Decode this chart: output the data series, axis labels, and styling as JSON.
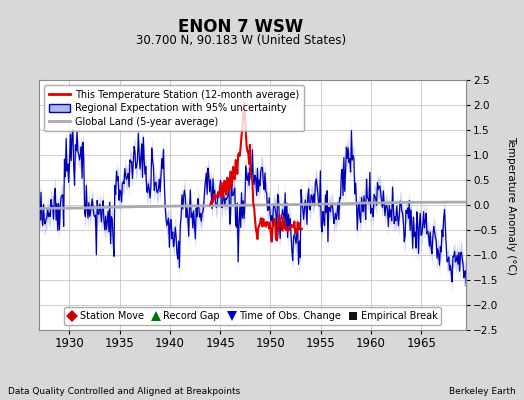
{
  "title": "ENON 7 WSW",
  "subtitle": "30.700 N, 90.183 W (United States)",
  "xlabel_bottom": "Data Quality Controlled and Aligned at Breakpoints",
  "xlabel_right": "Berkeley Earth",
  "ylabel_right": "Temperature Anomaly (°C)",
  "xlim": [
    1927.0,
    1969.5
  ],
  "ylim": [
    -2.5,
    2.5
  ],
  "yticks": [
    -2.5,
    -2.0,
    -1.5,
    -1.0,
    -0.5,
    0.0,
    0.5,
    1.0,
    1.5,
    2.0,
    2.5
  ],
  "xticks": [
    1930,
    1935,
    1940,
    1945,
    1950,
    1955,
    1960,
    1965
  ],
  "background_color": "#d8d8d8",
  "plot_bg_color": "#ffffff",
  "grid_color": "#bbbbbb",
  "blue_line_color": "#0000bb",
  "blue_fill_color": "#b0b8e8",
  "red_line_color": "#dd0000",
  "gray_line_color": "#aaaaaa",
  "legend_items": [
    {
      "label": "This Temperature Station (12-month average)"
    },
    {
      "label": "Regional Expectation with 95% uncertainty"
    },
    {
      "label": "Global Land (5-year average)"
    }
  ],
  "marker_legend": [
    {
      "label": "Station Move",
      "marker": "D",
      "color": "#cc0000"
    },
    {
      "label": "Record Gap",
      "marker": "^",
      "color": "#007700"
    },
    {
      "label": "Time of Obs. Change",
      "marker": "v",
      "color": "#0000cc"
    },
    {
      "label": "Empirical Break",
      "marker": "s",
      "color": "#111111"
    }
  ]
}
